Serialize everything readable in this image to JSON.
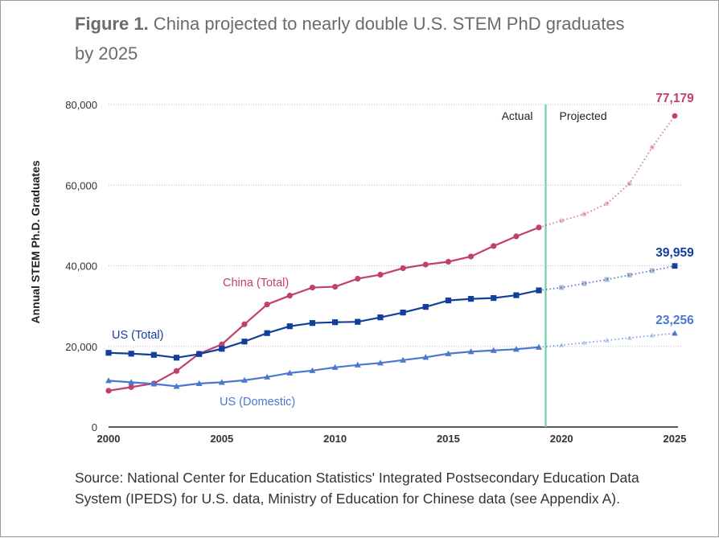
{
  "figure": {
    "title_lead": "Figure 1.",
    "title_rest": " China projected to nearly double U.S. STEM PhD graduates by 2025",
    "source": "Source: National Center for Education Statistics' Integrated Postsecondary Education Data System (IPEDS) for U.S. data, Ministry of Education for Chinese data (see Appendix A)."
  },
  "chart_data": {
    "type": "line",
    "title": "China projected to nearly double U.S. STEM PhD graduates by 2025",
    "xlabel": "",
    "ylabel": "Annual STEM Ph.D. Graduates",
    "xlim": [
      2000,
      2025
    ],
    "ylim": [
      0,
      80000
    ],
    "yticks": [
      0,
      20000,
      40000,
      60000,
      80000
    ],
    "ytick_labels": [
      "0",
      "20,000",
      "40,000",
      "60,000",
      "80,000"
    ],
    "xticks": [
      2000,
      2005,
      2010,
      2015,
      2020,
      2025
    ],
    "xtick_labels": [
      "2000",
      "2005",
      "2010",
      "2015",
      "2020",
      "2025"
    ],
    "divider_year": 2019.3,
    "annotations": {
      "actual": "Actual",
      "projected": "Projected"
    },
    "series": [
      {
        "name": "China (Total)",
        "color": "#c2406e",
        "marker": "circle",
        "end_label": "77,179",
        "actual": {
          "x": [
            2000,
            2001,
            2002,
            2003,
            2004,
            2005,
            2006,
            2007,
            2008,
            2009,
            2010,
            2011,
            2012,
            2013,
            2014,
            2015,
            2016,
            2017,
            2018,
            2019
          ],
          "y": [
            9000,
            9900,
            10800,
            13900,
            18200,
            20500,
            25500,
            30400,
            32600,
            34600,
            34800,
            36800,
            37800,
            39400,
            40300,
            41000,
            42300,
            44900,
            47300,
            49500
          ]
        },
        "projected": {
          "x": [
            2019,
            2020,
            2021,
            2022,
            2023,
            2024,
            2025
          ],
          "y": [
            49500,
            51200,
            52800,
            55400,
            60400,
            69400,
            77179
          ]
        }
      },
      {
        "name": "US (Total)",
        "color": "#123f9c",
        "marker": "square",
        "end_label": "39,959",
        "actual": {
          "x": [
            2000,
            2001,
            2002,
            2003,
            2004,
            2005,
            2006,
            2007,
            2008,
            2009,
            2010,
            2011,
            2012,
            2013,
            2014,
            2015,
            2016,
            2017,
            2018,
            2019
          ],
          "y": [
            18400,
            18200,
            17900,
            17200,
            18100,
            19400,
            21200,
            23300,
            25000,
            25800,
            26000,
            26100,
            27200,
            28400,
            29800,
            31400,
            31800,
            32000,
            32700,
            33900
          ]
        },
        "projected": {
          "x": [
            2019,
            2020,
            2021,
            2022,
            2023,
            2024,
            2025
          ],
          "y": [
            33900,
            34600,
            35600,
            36600,
            37700,
            38800,
            39959
          ]
        }
      },
      {
        "name": "US (Domestic)",
        "color": "#4a78d0",
        "marker": "triangle",
        "end_label": "23,256",
        "actual": {
          "x": [
            2000,
            2001,
            2002,
            2003,
            2004,
            2005,
            2006,
            2007,
            2008,
            2009,
            2010,
            2011,
            2012,
            2013,
            2014,
            2015,
            2016,
            2017,
            2018,
            2019
          ],
          "y": [
            11500,
            11100,
            10700,
            10100,
            10800,
            11100,
            11600,
            12400,
            13400,
            14000,
            14800,
            15400,
            15900,
            16600,
            17300,
            18200,
            18700,
            19000,
            19300,
            19800
          ]
        },
        "projected": {
          "x": [
            2019,
            2020,
            2021,
            2022,
            2023,
            2024,
            2025
          ],
          "y": [
            19800,
            20300,
            20900,
            21500,
            22100,
            22700,
            23256
          ]
        }
      }
    ]
  }
}
